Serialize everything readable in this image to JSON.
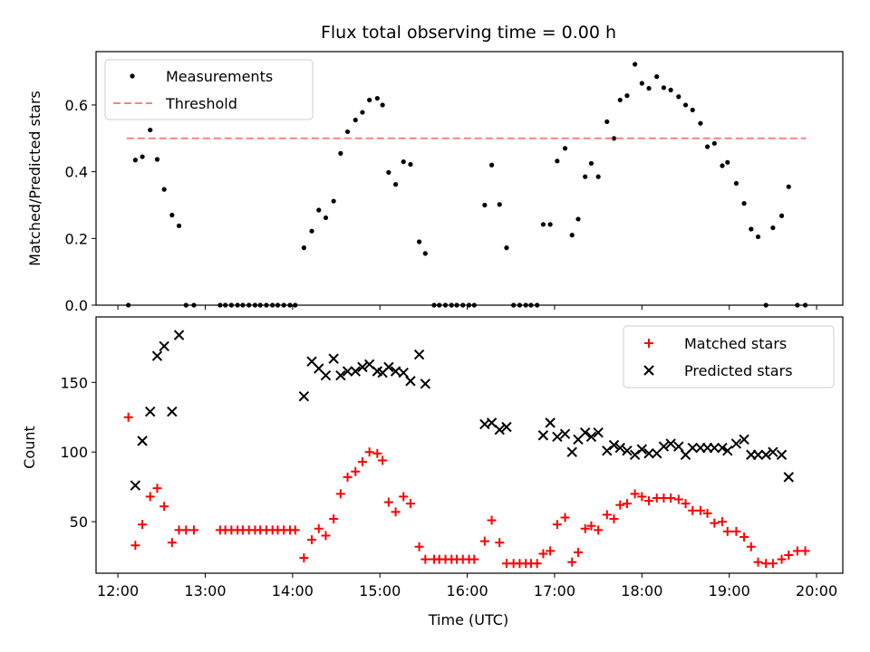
{
  "chart_data": [
    {
      "type": "scatter",
      "title": "Flux total observing time = 0.00 h",
      "xlabel": "",
      "ylabel": "Matched/Predicted stars",
      "xlim": [
        11.75,
        20.3
      ],
      "ylim": [
        0,
        0.76
      ],
      "yticks": [
        0.0,
        0.2,
        0.4,
        0.6
      ],
      "ytick_labels": [
        "0.0",
        "0.2",
        "0.4",
        "0.6"
      ],
      "grid": false,
      "legend": "top-left",
      "series": [
        {
          "name": "Measurements",
          "color": "#000000",
          "marker": "dot",
          "points": [
            [
              12.12,
              0.0
            ],
            [
              12.2,
              0.435
            ],
            [
              12.28,
              0.445
            ],
            [
              12.37,
              0.525
            ],
            [
              12.45,
              0.437
            ],
            [
              12.53,
              0.347
            ],
            [
              12.62,
              0.27
            ],
            [
              12.7,
              0.238
            ],
            [
              12.78,
              0.0
            ],
            [
              12.87,
              0.0
            ],
            [
              13.17,
              0.0
            ],
            [
              13.23,
              0.0
            ],
            [
              13.3,
              0.0
            ],
            [
              13.37,
              0.0
            ],
            [
              13.43,
              0.0
            ],
            [
              13.5,
              0.0
            ],
            [
              13.57,
              0.0
            ],
            [
              13.63,
              0.0
            ],
            [
              13.7,
              0.0
            ],
            [
              13.77,
              0.0
            ],
            [
              13.83,
              0.0
            ],
            [
              13.9,
              0.0
            ],
            [
              13.97,
              0.0
            ],
            [
              14.03,
              0.0
            ],
            [
              14.13,
              0.172
            ],
            [
              14.22,
              0.222
            ],
            [
              14.3,
              0.285
            ],
            [
              14.38,
              0.262
            ],
            [
              14.47,
              0.312
            ],
            [
              14.55,
              0.455
            ],
            [
              14.63,
              0.52
            ],
            [
              14.72,
              0.555
            ],
            [
              14.8,
              0.578
            ],
            [
              14.88,
              0.615
            ],
            [
              14.97,
              0.62
            ],
            [
              15.03,
              0.6
            ],
            [
              15.1,
              0.398
            ],
            [
              15.18,
              0.362
            ],
            [
              15.27,
              0.43
            ],
            [
              15.35,
              0.422
            ],
            [
              15.45,
              0.19
            ],
            [
              15.52,
              0.155
            ],
            [
              15.62,
              0.0
            ],
            [
              15.68,
              0.0
            ],
            [
              15.75,
              0.0
            ],
            [
              15.82,
              0.0
            ],
            [
              15.88,
              0.0
            ],
            [
              15.95,
              0.0
            ],
            [
              16.02,
              0.0
            ],
            [
              16.08,
              0.0
            ],
            [
              16.2,
              0.3
            ],
            [
              16.28,
              0.42
            ],
            [
              16.37,
              0.302
            ],
            [
              16.45,
              0.172
            ],
            [
              16.53,
              0.0
            ],
            [
              16.6,
              0.0
            ],
            [
              16.67,
              0.0
            ],
            [
              16.73,
              0.0
            ],
            [
              16.8,
              0.0
            ],
            [
              16.87,
              0.242
            ],
            [
              16.95,
              0.242
            ],
            [
              17.03,
              0.432
            ],
            [
              17.12,
              0.47
            ],
            [
              17.2,
              0.21
            ],
            [
              17.27,
              0.258
            ],
            [
              17.35,
              0.385
            ],
            [
              17.42,
              0.425
            ],
            [
              17.5,
              0.385
            ],
            [
              17.6,
              0.55
            ],
            [
              17.68,
              0.5
            ],
            [
              17.75,
              0.615
            ],
            [
              17.83,
              0.628
            ],
            [
              17.92,
              0.722
            ],
            [
              18.0,
              0.665
            ],
            [
              18.08,
              0.65
            ],
            [
              18.17,
              0.685
            ],
            [
              18.25,
              0.652
            ],
            [
              18.33,
              0.645
            ],
            [
              18.42,
              0.625
            ],
            [
              18.5,
              0.6
            ],
            [
              18.58,
              0.585
            ],
            [
              18.67,
              0.545
            ],
            [
              18.75,
              0.475
            ],
            [
              18.83,
              0.485
            ],
            [
              18.92,
              0.418
            ],
            [
              18.98,
              0.428
            ],
            [
              19.08,
              0.365
            ],
            [
              19.17,
              0.305
            ],
            [
              19.25,
              0.228
            ],
            [
              19.33,
              0.205
            ],
            [
              19.42,
              0.0
            ],
            [
              19.5,
              0.232
            ],
            [
              19.6,
              0.268
            ],
            [
              19.68,
              0.355
            ],
            [
              19.78,
              0.0
            ],
            [
              19.87,
              0.0
            ]
          ]
        },
        {
          "name": "Threshold",
          "color": "#ff8080",
          "line_style": "dashed",
          "points": [
            [
              12.1,
              0.5
            ],
            [
              19.88,
              0.5
            ]
          ]
        }
      ]
    },
    {
      "type": "scatter",
      "title": "",
      "xlabel": "Time (UTC)",
      "ylabel": "Count",
      "xlim": [
        11.75,
        20.3
      ],
      "ylim": [
        13,
        197
      ],
      "xticks": [
        12,
        13,
        14,
        15,
        16,
        17,
        18,
        19,
        20
      ],
      "xtick_labels": [
        "12:00",
        "13:00",
        "14:00",
        "15:00",
        "16:00",
        "17:00",
        "18:00",
        "19:00",
        "20:00"
      ],
      "yticks": [
        50,
        100,
        150
      ],
      "ytick_labels": [
        "50",
        "100",
        "150"
      ],
      "grid": false,
      "legend": "top-right",
      "series": [
        {
          "name": "Matched stars",
          "color": "#ff0000",
          "marker": "plus",
          "points": [
            [
              12.12,
              125
            ],
            [
              12.2,
              33
            ],
            [
              12.28,
              48
            ],
            [
              12.37,
              68
            ],
            [
              12.45,
              74
            ],
            [
              12.53,
              61
            ],
            [
              12.62,
              35
            ],
            [
              12.7,
              44
            ],
            [
              12.78,
              44
            ],
            [
              12.87,
              44
            ],
            [
              13.17,
              44
            ],
            [
              13.23,
              44
            ],
            [
              13.3,
              44
            ],
            [
              13.37,
              44
            ],
            [
              13.43,
              44
            ],
            [
              13.5,
              44
            ],
            [
              13.57,
              44
            ],
            [
              13.63,
              44
            ],
            [
              13.7,
              44
            ],
            [
              13.77,
              44
            ],
            [
              13.83,
              44
            ],
            [
              13.9,
              44
            ],
            [
              13.97,
              44
            ],
            [
              14.03,
              44
            ],
            [
              14.13,
              24
            ],
            [
              14.22,
              37
            ],
            [
              14.3,
              45
            ],
            [
              14.38,
              40
            ],
            [
              14.47,
              52
            ],
            [
              14.55,
              70
            ],
            [
              14.63,
              82
            ],
            [
              14.72,
              86
            ],
            [
              14.8,
              93
            ],
            [
              14.88,
              100
            ],
            [
              14.97,
              99
            ],
            [
              15.03,
              94
            ],
            [
              15.1,
              64
            ],
            [
              15.18,
              57
            ],
            [
              15.27,
              68
            ],
            [
              15.35,
              63
            ],
            [
              15.45,
              32
            ],
            [
              15.52,
              23
            ],
            [
              15.62,
              23
            ],
            [
              15.68,
              23
            ],
            [
              15.75,
              23
            ],
            [
              15.82,
              23
            ],
            [
              15.88,
              23
            ],
            [
              15.95,
              23
            ],
            [
              16.02,
              23
            ],
            [
              16.08,
              23
            ],
            [
              16.2,
              36
            ],
            [
              16.28,
              51
            ],
            [
              16.37,
              35
            ],
            [
              16.45,
              20
            ],
            [
              16.53,
              20
            ],
            [
              16.6,
              20
            ],
            [
              16.67,
              20
            ],
            [
              16.73,
              20
            ],
            [
              16.8,
              20
            ],
            [
              16.87,
              27
            ],
            [
              16.95,
              29
            ],
            [
              17.03,
              48
            ],
            [
              17.12,
              53
            ],
            [
              17.2,
              21
            ],
            [
              17.27,
              28
            ],
            [
              17.35,
              45
            ],
            [
              17.42,
              47
            ],
            [
              17.5,
              44
            ],
            [
              17.6,
              55
            ],
            [
              17.68,
              52
            ],
            [
              17.75,
              62
            ],
            [
              17.83,
              63
            ],
            [
              17.92,
              70
            ],
            [
              18.0,
              68
            ],
            [
              18.08,
              65
            ],
            [
              18.17,
              67
            ],
            [
              18.25,
              67
            ],
            [
              18.33,
              67
            ],
            [
              18.42,
              66
            ],
            [
              18.5,
              63
            ],
            [
              18.58,
              58
            ],
            [
              18.67,
              58
            ],
            [
              18.75,
              56
            ],
            [
              18.83,
              49
            ],
            [
              18.92,
              50
            ],
            [
              18.98,
              43
            ],
            [
              19.08,
              43
            ],
            [
              19.17,
              39
            ],
            [
              19.25,
              32
            ],
            [
              19.33,
              21
            ],
            [
              19.42,
              20
            ],
            [
              19.5,
              20
            ],
            [
              19.6,
              23
            ],
            [
              19.68,
              26
            ],
            [
              19.78,
              29
            ],
            [
              19.87,
              29
            ]
          ]
        },
        {
          "name": "Predicted stars",
          "color": "#000000",
          "marker": "x",
          "points": [
            [
              12.2,
              76
            ],
            [
              12.28,
              108
            ],
            [
              12.37,
              129
            ],
            [
              12.45,
              169
            ],
            [
              12.53,
              176
            ],
            [
              12.62,
              129
            ],
            [
              12.7,
              184
            ],
            [
              14.13,
              140
            ],
            [
              14.22,
              165
            ],
            [
              14.3,
              160
            ],
            [
              14.38,
              155
            ],
            [
              14.47,
              167
            ],
            [
              14.55,
              155
            ],
            [
              14.63,
              158
            ],
            [
              14.72,
              158
            ],
            [
              14.8,
              161
            ],
            [
              14.88,
              163
            ],
            [
              14.97,
              158
            ],
            [
              15.03,
              157
            ],
            [
              15.1,
              161
            ],
            [
              15.18,
              158
            ],
            [
              15.27,
              157
            ],
            [
              15.35,
              151
            ],
            [
              15.45,
              170
            ],
            [
              15.52,
              149
            ],
            [
              16.2,
              120
            ],
            [
              16.28,
              121
            ],
            [
              16.37,
              116
            ],
            [
              16.45,
              118
            ],
            [
              16.87,
              112
            ],
            [
              16.95,
              121
            ],
            [
              17.03,
              111
            ],
            [
              17.12,
              113
            ],
            [
              17.2,
              100
            ],
            [
              17.27,
              109
            ],
            [
              17.35,
              114
            ],
            [
              17.42,
              111
            ],
            [
              17.5,
              114
            ],
            [
              17.6,
              101
            ],
            [
              17.68,
              105
            ],
            [
              17.75,
              103
            ],
            [
              17.83,
              101
            ],
            [
              17.92,
              98
            ],
            [
              18.0,
              102
            ],
            [
              18.08,
              99
            ],
            [
              18.17,
              99
            ],
            [
              18.25,
              104
            ],
            [
              18.33,
              106
            ],
            [
              18.42,
              104
            ],
            [
              18.5,
              98
            ],
            [
              18.58,
              103
            ],
            [
              18.67,
              103
            ],
            [
              18.75,
              103
            ],
            [
              18.83,
              103
            ],
            [
              18.92,
              103
            ],
            [
              18.98,
              101
            ],
            [
              19.08,
              106
            ],
            [
              19.17,
              109
            ],
            [
              19.25,
              98
            ],
            [
              19.33,
              98
            ],
            [
              19.42,
              98
            ],
            [
              19.5,
              100
            ],
            [
              19.6,
              98
            ],
            [
              19.68,
              82
            ]
          ]
        }
      ]
    }
  ]
}
